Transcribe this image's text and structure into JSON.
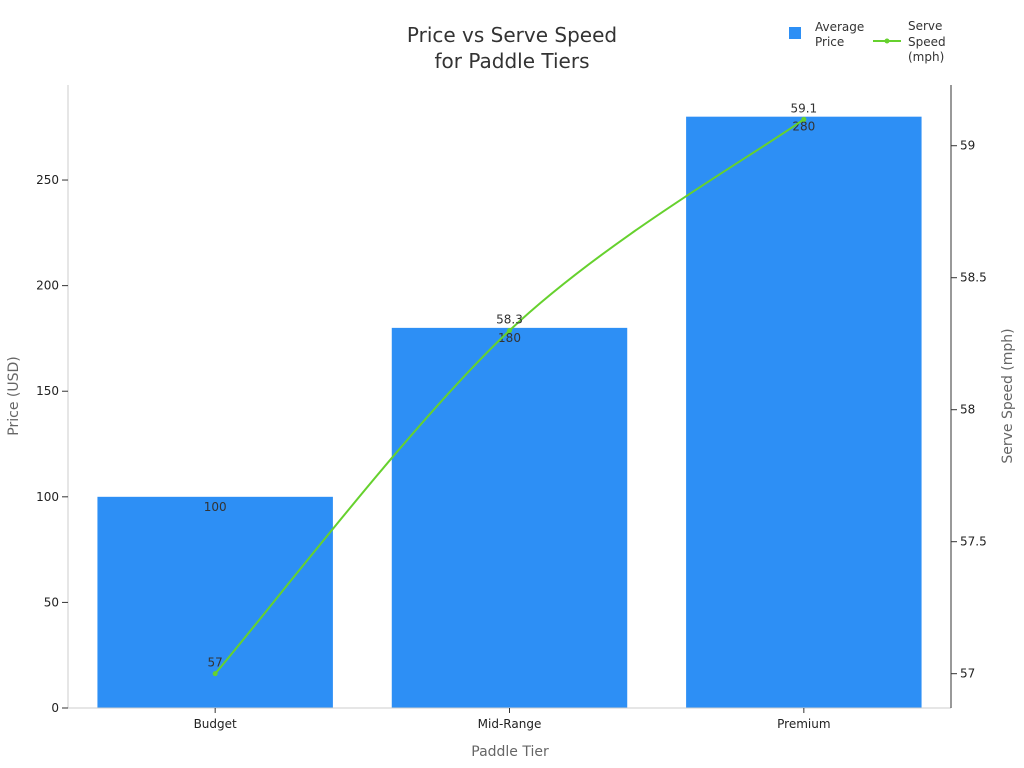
{
  "chart_data": {
    "type": "bar",
    "title_lines": [
      "Price vs Serve Speed",
      "for Paddle Tiers"
    ],
    "xlabel": "Paddle Tier",
    "ylabel": "Price (USD)",
    "y2label": "Serve Speed (mph)",
    "categories": [
      "Budget",
      "Mid-Range",
      "Premium"
    ],
    "ylim": [
      0,
      295
    ],
    "y2lim": [
      56.87,
      59.23
    ],
    "yticks": [
      0,
      50,
      100,
      150,
      200,
      250
    ],
    "y2ticks": [
      57,
      57.5,
      58,
      58.5,
      59
    ],
    "series": [
      {
        "name_lines": [
          "Average",
          "Price"
        ],
        "type": "bar",
        "axis": "left",
        "values": [
          100,
          180,
          280
        ],
        "labels": [
          "100",
          "180",
          "280"
        ],
        "color": "#2d8ff5"
      },
      {
        "name_lines": [
          "Serve",
          "Speed",
          "(mph)"
        ],
        "type": "line",
        "axis": "right",
        "values": [
          57,
          58.3,
          59.1
        ],
        "labels": [
          "57",
          "58.3",
          "59.1"
        ],
        "color": "#66d12e"
      }
    ],
    "legend_position": "top-right"
  }
}
